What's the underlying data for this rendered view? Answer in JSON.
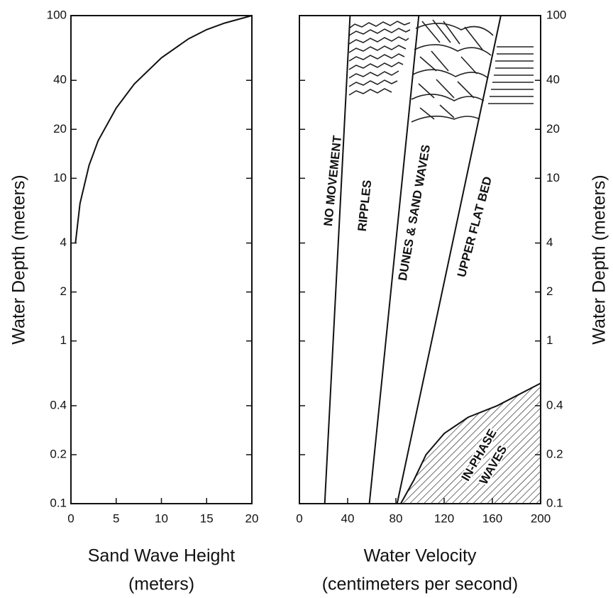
{
  "chart_data": [
    {
      "type": "line",
      "yscale": "log",
      "y_label": "Water Depth (meters)",
      "x_label": [
        "Sand Wave Height",
        "(meters)"
      ],
      "x": [
        0.5,
        1,
        2,
        3,
        5,
        7,
        10,
        13,
        15,
        17,
        20
      ],
      "series": [
        {
          "color": "#111",
          "values": [
            4,
            7,
            12,
            17,
            27,
            38,
            55,
            72,
            82,
            90,
            100
          ]
        }
      ],
      "xlim": [
        0,
        20
      ],
      "xticks": [
        0,
        5,
        10,
        15,
        20
      ],
      "ylim": [
        0.1,
        100
      ],
      "yticks": [
        0.1,
        0.2,
        0.4,
        1,
        2,
        4,
        10,
        20,
        40,
        100
      ]
    },
    {
      "type": "regions",
      "yscale": "log",
      "y_label": "Water Depth (meters)",
      "x_label": [
        "Water Velocity",
        "(centimeters per second)"
      ],
      "annotations": [
        "NO MOVEMENT",
        "RIPPLES",
        "DUNES & SAND WAVES",
        "UPPER FLAT BED",
        "IN-PHASE",
        "WAVES"
      ],
      "series": [
        {
          "color": "#111",
          "x": [
            21,
            42
          ],
          "values": [
            0.1,
            100
          ]
        },
        {
          "color": "#111",
          "x": [
            58,
            99
          ],
          "values": [
            0.1,
            100
          ]
        },
        {
          "color": "#111",
          "x": [
            81,
            167
          ],
          "values": [
            0.1,
            100
          ]
        },
        {
          "color": "#111",
          "fill": "hatch",
          "x": [
            84,
            95,
            105,
            120,
            140,
            164,
            200
          ],
          "values": [
            0.1,
            0.14,
            0.2,
            0.27,
            0.34,
            0.4,
            0.55
          ]
        }
      ],
      "xlim": [
        0,
        200
      ],
      "xticks": [
        0,
        40,
        80,
        120,
        160,
        200
      ],
      "y2lim": [
        0.1,
        100
      ],
      "y2ticks": [
        0.1,
        0.2,
        0.4,
        1,
        2,
        4,
        10,
        20,
        40,
        100
      ]
    }
  ]
}
